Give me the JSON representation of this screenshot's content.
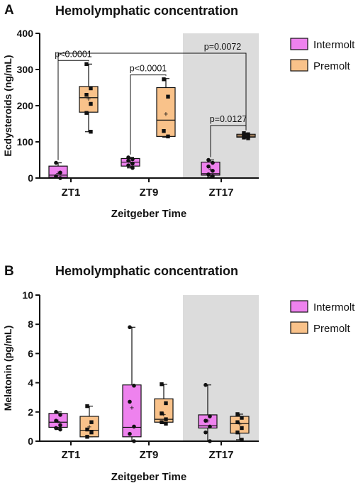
{
  "colors": {
    "intermolt": "#EE82EE",
    "premolt": "#F9C28A",
    "shade": "#DCDCDC",
    "ink": "#111111"
  },
  "legend_labels": [
    "Intermolt",
    "Premolt"
  ],
  "chart_data": [
    {
      "panel_letter": "A",
      "type": "box",
      "title": "Hemolymphatic concentration",
      "xlabel": "Zeitgeber Time",
      "ylabel": "Ecdysteroids (ng/mL)",
      "ylim": [
        0,
        400
      ],
      "yticks": [
        "0",
        "100",
        "200",
        "300",
        "400"
      ],
      "categories": [
        "ZT1",
        "ZT9",
        "ZT17"
      ],
      "shaded_category": "ZT17",
      "grid": false,
      "legend_position": "right",
      "series": [
        {
          "name": "Intermolt",
          "boxes": [
            {
              "min": 0,
              "q1": 2,
              "median": 8,
              "q3": 33,
              "max": 42,
              "mean": 14,
              "points": [
                42,
                15,
                5,
                0
              ]
            },
            {
              "min": 28,
              "q1": 33,
              "median": 44,
              "q3": 54,
              "max": 57,
              "mean": 44,
              "points": [
                57,
                52,
                48,
                40,
                35,
                28
              ]
            },
            {
              "min": 3,
              "q1": 8,
              "median": 12,
              "q3": 44,
              "max": 50,
              "mean": 25,
              "points": [
                50,
                42,
                32,
                20,
                10,
                5
              ]
            }
          ]
        },
        {
          "name": "Premolt",
          "boxes": [
            {
              "min": 128,
              "q1": 182,
              "median": 222,
              "q3": 253,
              "max": 315,
              "mean": 220,
              "points": [
                315,
                248,
                230,
                205,
                180,
                128
              ]
            },
            {
              "min": 113,
              "q1": 115,
              "median": 160,
              "q3": 250,
              "max": 275,
              "mean": 177,
              "points": [
                273,
                225,
                130,
                115
              ]
            },
            {
              "min": 110,
              "q1": 113,
              "median": 116,
              "q3": 121,
              "max": 124,
              "mean": 117,
              "points": [
                124,
                121,
                118,
                115,
                112,
                110
              ]
            }
          ]
        }
      ],
      "annotations": [
        {
          "text": "p<0.0001",
          "from": "ZT1:Intermolt",
          "to": "ZT1:Premolt",
          "level": 325
        },
        {
          "text": "p<0.0001",
          "from": "ZT9:Intermolt",
          "to": "ZT9:Premolt",
          "level": 285
        },
        {
          "text": "p=0.0127",
          "from": "ZT17:Intermolt",
          "to": "ZT17:Premolt",
          "level": 145
        },
        {
          "text": "p=0.0072",
          "from": "ZT1:Intermolt",
          "to": "ZT17:Premolt",
          "level": 345
        }
      ]
    },
    {
      "panel_letter": "B",
      "type": "box",
      "title": "Hemolymphatic concentration",
      "xlabel": "Zeitgeber Time",
      "ylabel": "Melatonin (pg/mL)",
      "ylim": [
        0,
        10
      ],
      "yticks": [
        "0",
        "2",
        "4",
        "6",
        "8",
        "10"
      ],
      "categories": [
        "ZT1",
        "ZT9",
        "ZT17"
      ],
      "shaded_category": "ZT17",
      "grid": false,
      "legend_position": "right",
      "series": [
        {
          "name": "Intermolt",
          "boxes": [
            {
              "min": 0.8,
              "q1": 0.95,
              "median": 1.3,
              "q3": 1.9,
              "max": 2.0,
              "mean": 1.35,
              "points": [
                2.0,
                1.8,
                1.4,
                1.1,
                0.9,
                0.8
              ]
            },
            {
              "min": 0.0,
              "q1": 0.3,
              "median": 0.95,
              "q3": 3.85,
              "max": 7.8,
              "mean": 2.3,
              "points": [
                7.8,
                3.8,
                2.7,
                1.0,
                0.5,
                0.0
              ]
            },
            {
              "min": 0.0,
              "q1": 0.9,
              "median": 1.05,
              "q3": 1.8,
              "max": 3.85,
              "mean": 1.4,
              "points": [
                3.85,
                1.7,
                1.4,
                1.0,
                0.6,
                0.0
              ]
            }
          ]
        },
        {
          "name": "Premolt",
          "boxes": [
            {
              "min": 0.3,
              "q1": 0.3,
              "median": 0.75,
              "q3": 1.7,
              "max": 2.4,
              "mean": 1.0,
              "points": [
                2.4,
                1.3,
                0.8,
                0.6,
                0.3
              ]
            },
            {
              "min": 1.2,
              "q1": 1.3,
              "median": 1.5,
              "q3": 2.9,
              "max": 3.9,
              "mean": 1.85,
              "points": [
                3.9,
                2.6,
                1.9,
                1.5,
                1.3,
                1.2
              ]
            },
            {
              "min": 0.1,
              "q1": 0.55,
              "median": 1.2,
              "q3": 1.7,
              "max": 1.85,
              "mean": 1.2,
              "points": [
                1.85,
                1.6,
                1.3,
                0.9,
                0.6,
                0.1
              ]
            }
          ]
        }
      ],
      "annotations": []
    }
  ]
}
